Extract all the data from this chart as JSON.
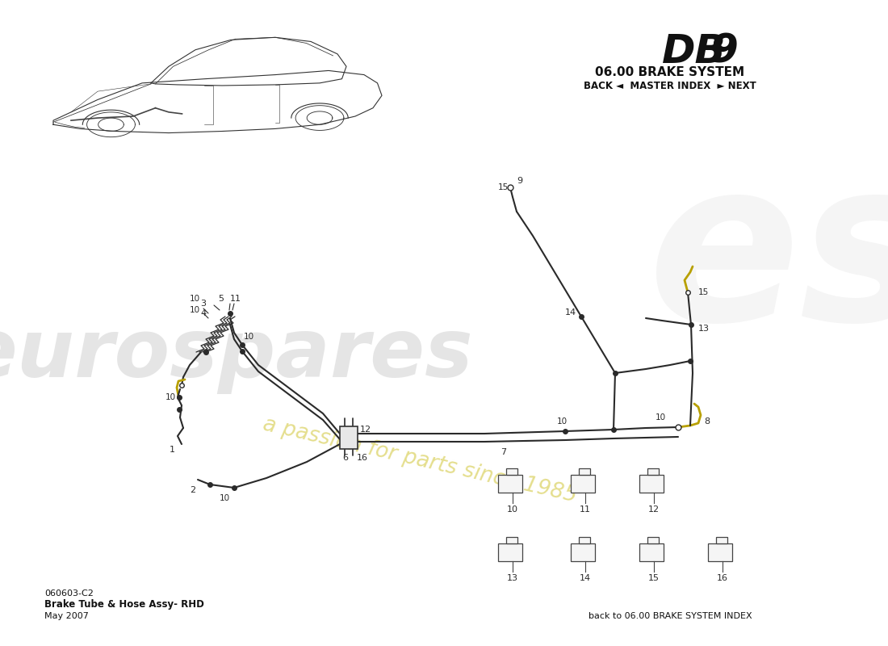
{
  "title_db": "DB",
  "title_9": "9",
  "subtitle": "06.00 BRAKE SYSTEM",
  "nav_text": "BACK ◄  MASTER INDEX  ► NEXT",
  "part_number": "060603-C2",
  "part_name": "Brake Tube & Hose Assy- RHD",
  "date": "May 2007",
  "footer_text": "back to 06.00 BRAKE SYSTEM INDEX",
  "bg_color": "#ffffff",
  "line_color": "#2a2a2a",
  "yellow_line_color": "#b8a000",
  "watermark_eurospares_color": "#cccccc",
  "watermark_passion_color": "#e8e090",
  "watermark_1985_color": "#d4c860"
}
